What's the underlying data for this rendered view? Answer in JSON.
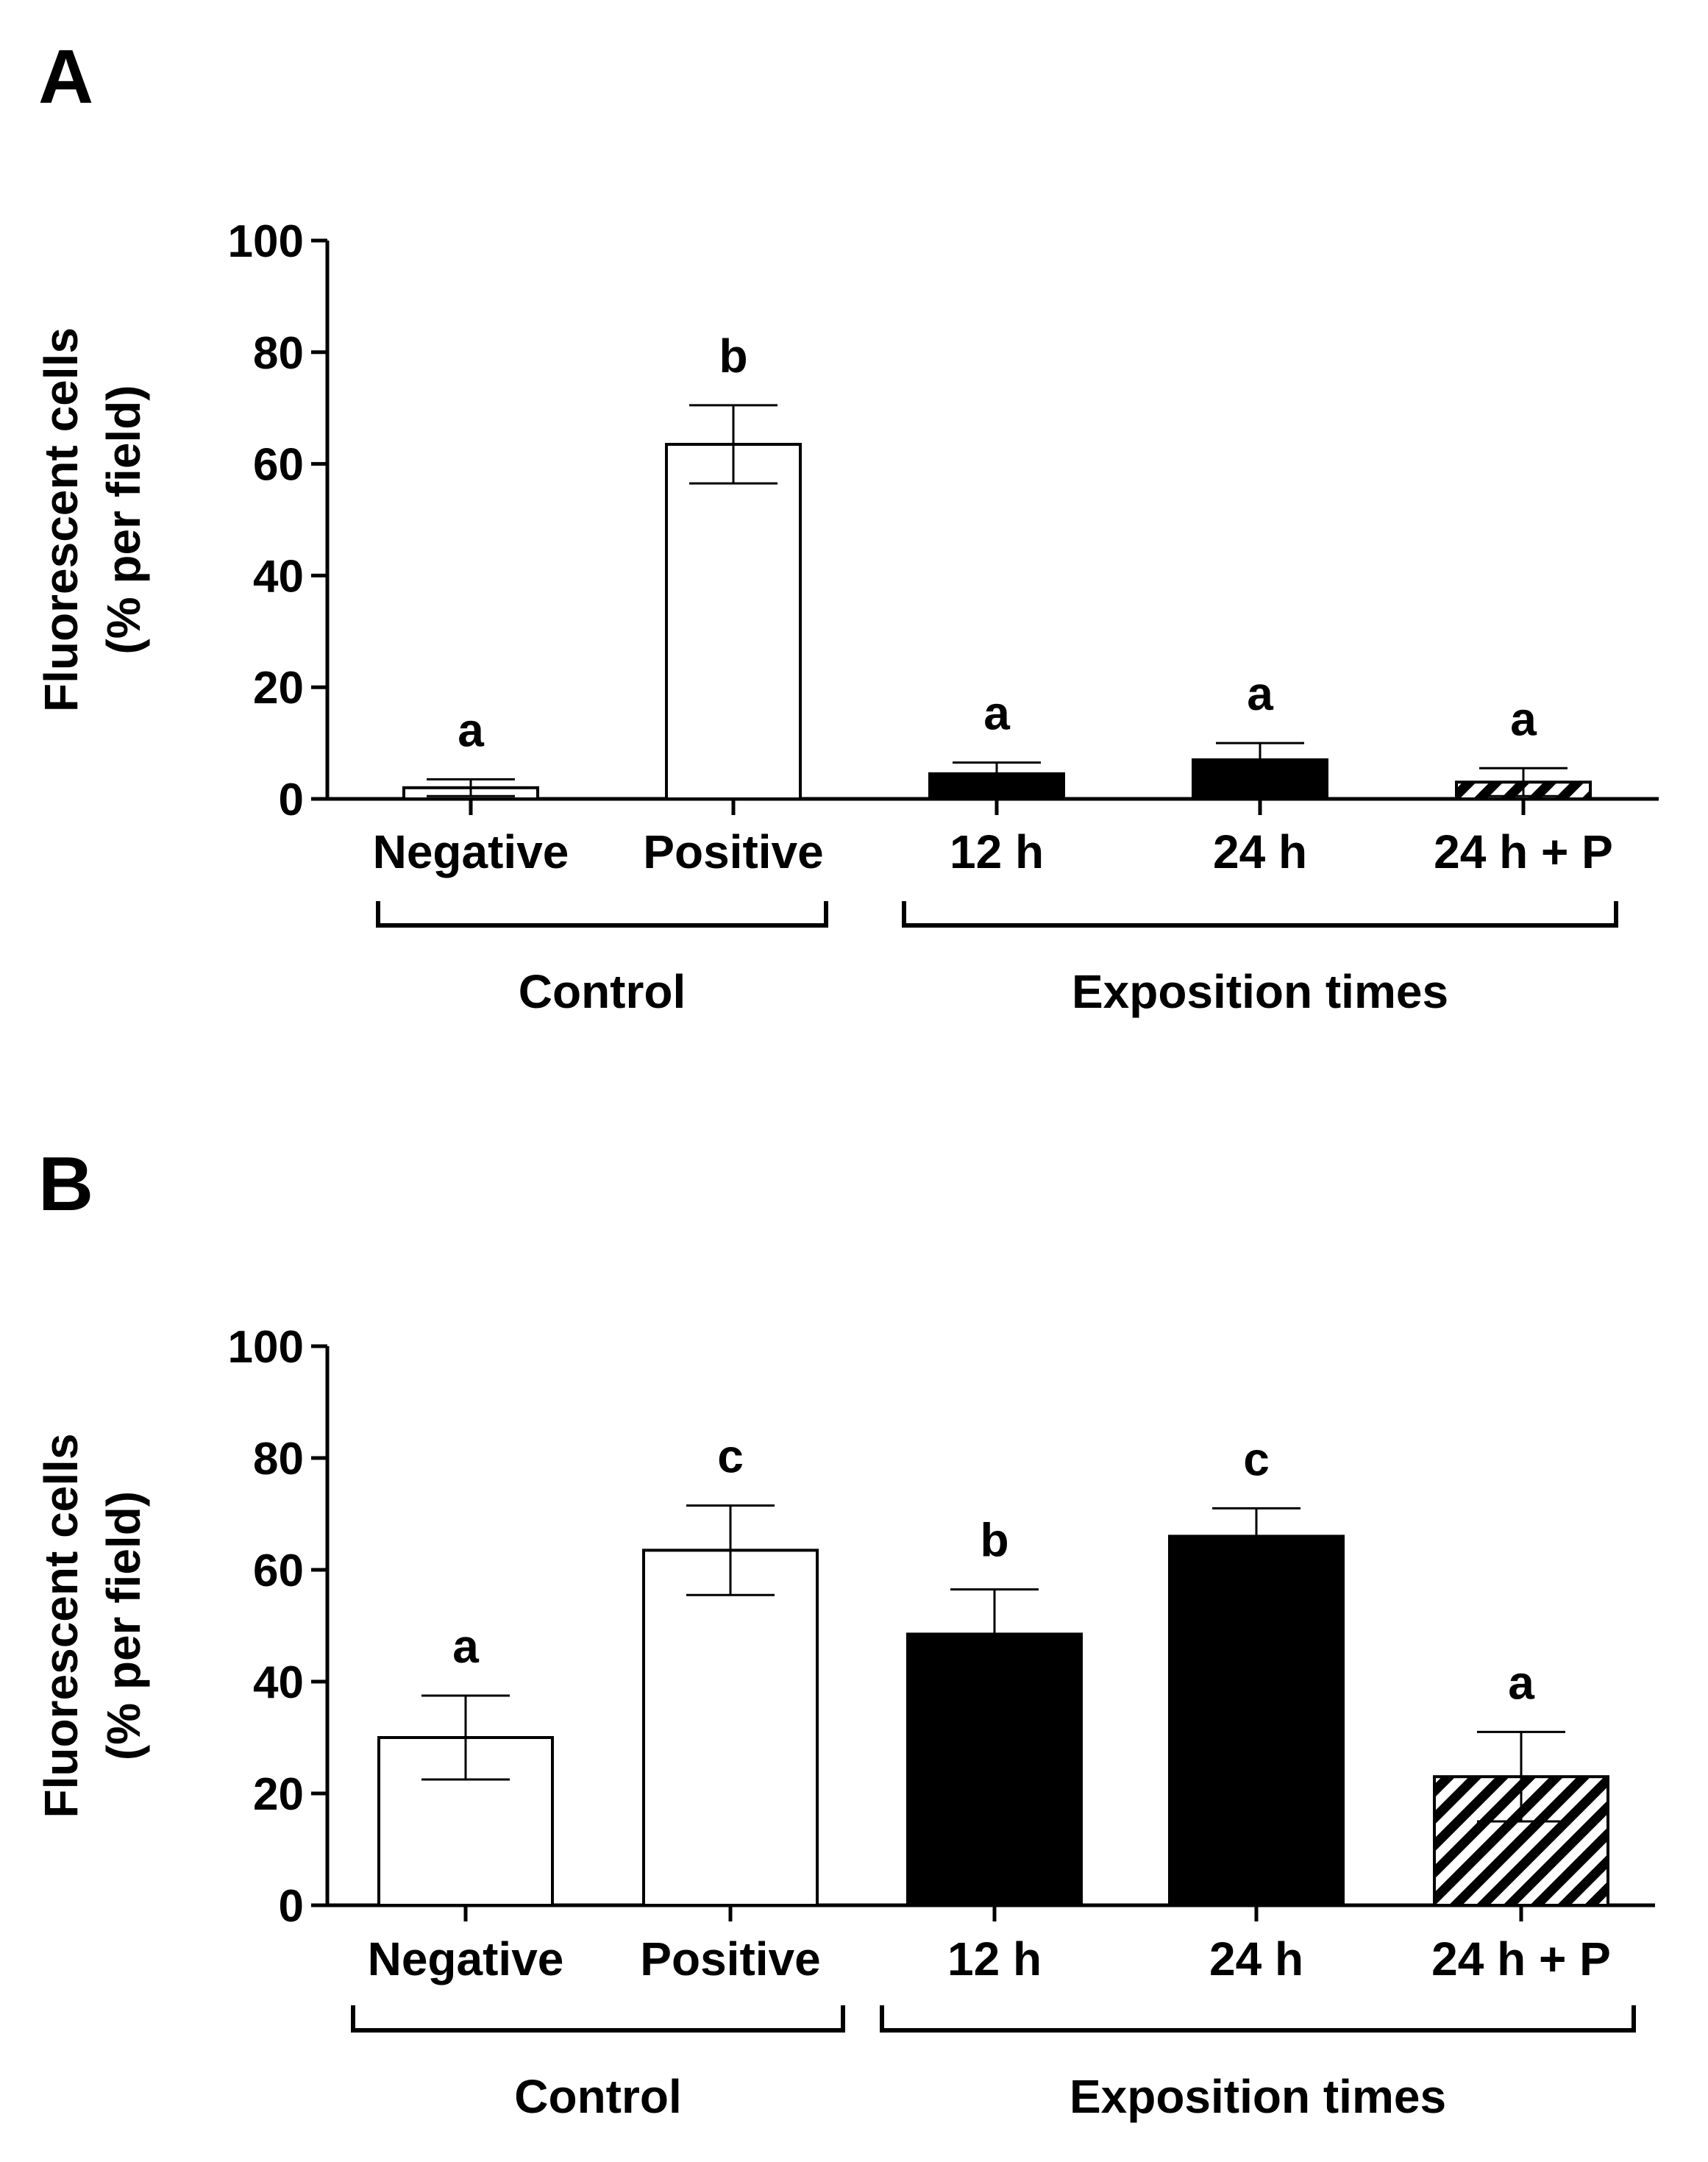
{
  "chart_data": [
    {
      "type": "bar",
      "panel": "A",
      "ylabel_lines": [
        "Fluorescent cells",
        "(% per field)"
      ],
      "ylim": [
        0,
        100
      ],
      "yticks": [
        "0",
        "20",
        "40",
        "60",
        "80",
        "100"
      ],
      "categories": [
        "Negative",
        "Positive",
        "12 h",
        "24 h",
        "24 h + P"
      ],
      "values": [
        2,
        63.5,
        4.5,
        7,
        3
      ],
      "errors": [
        1.5,
        7,
        2,
        3,
        2.5
      ],
      "fills": [
        "white",
        "white",
        "black",
        "black",
        "hatched"
      ],
      "significance": [
        "a",
        "b",
        "a",
        "a",
        "a"
      ],
      "groups": [
        {
          "label": "Control",
          "members": [
            "Negative",
            "Positive"
          ]
        },
        {
          "label": "Exposition times",
          "members": [
            "12 h",
            "24 h",
            "24 h + P"
          ]
        }
      ]
    },
    {
      "type": "bar",
      "panel": "B",
      "ylabel_lines": [
        "Fluorescent cells",
        "(% per field)"
      ],
      "ylim": [
        0,
        100
      ],
      "yticks": [
        "0",
        "20",
        "40",
        "60",
        "80",
        "100"
      ],
      "categories": [
        "Negative",
        "Positive",
        "12 h",
        "24 h",
        "24 h + P"
      ],
      "values": [
        30,
        63.5,
        48.5,
        66,
        23
      ],
      "errors": [
        7.5,
        8,
        8,
        5,
        8
      ],
      "fills": [
        "white",
        "white",
        "black",
        "black",
        "hatched"
      ],
      "significance": [
        "a",
        "c",
        "b",
        "c",
        "a"
      ],
      "groups": [
        {
          "label": "Control",
          "members": [
            "Negative",
            "Positive"
          ]
        },
        {
          "label": "Exposition times",
          "members": [
            "12 h",
            "24 h",
            "24 h + P"
          ]
        }
      ]
    }
  ]
}
